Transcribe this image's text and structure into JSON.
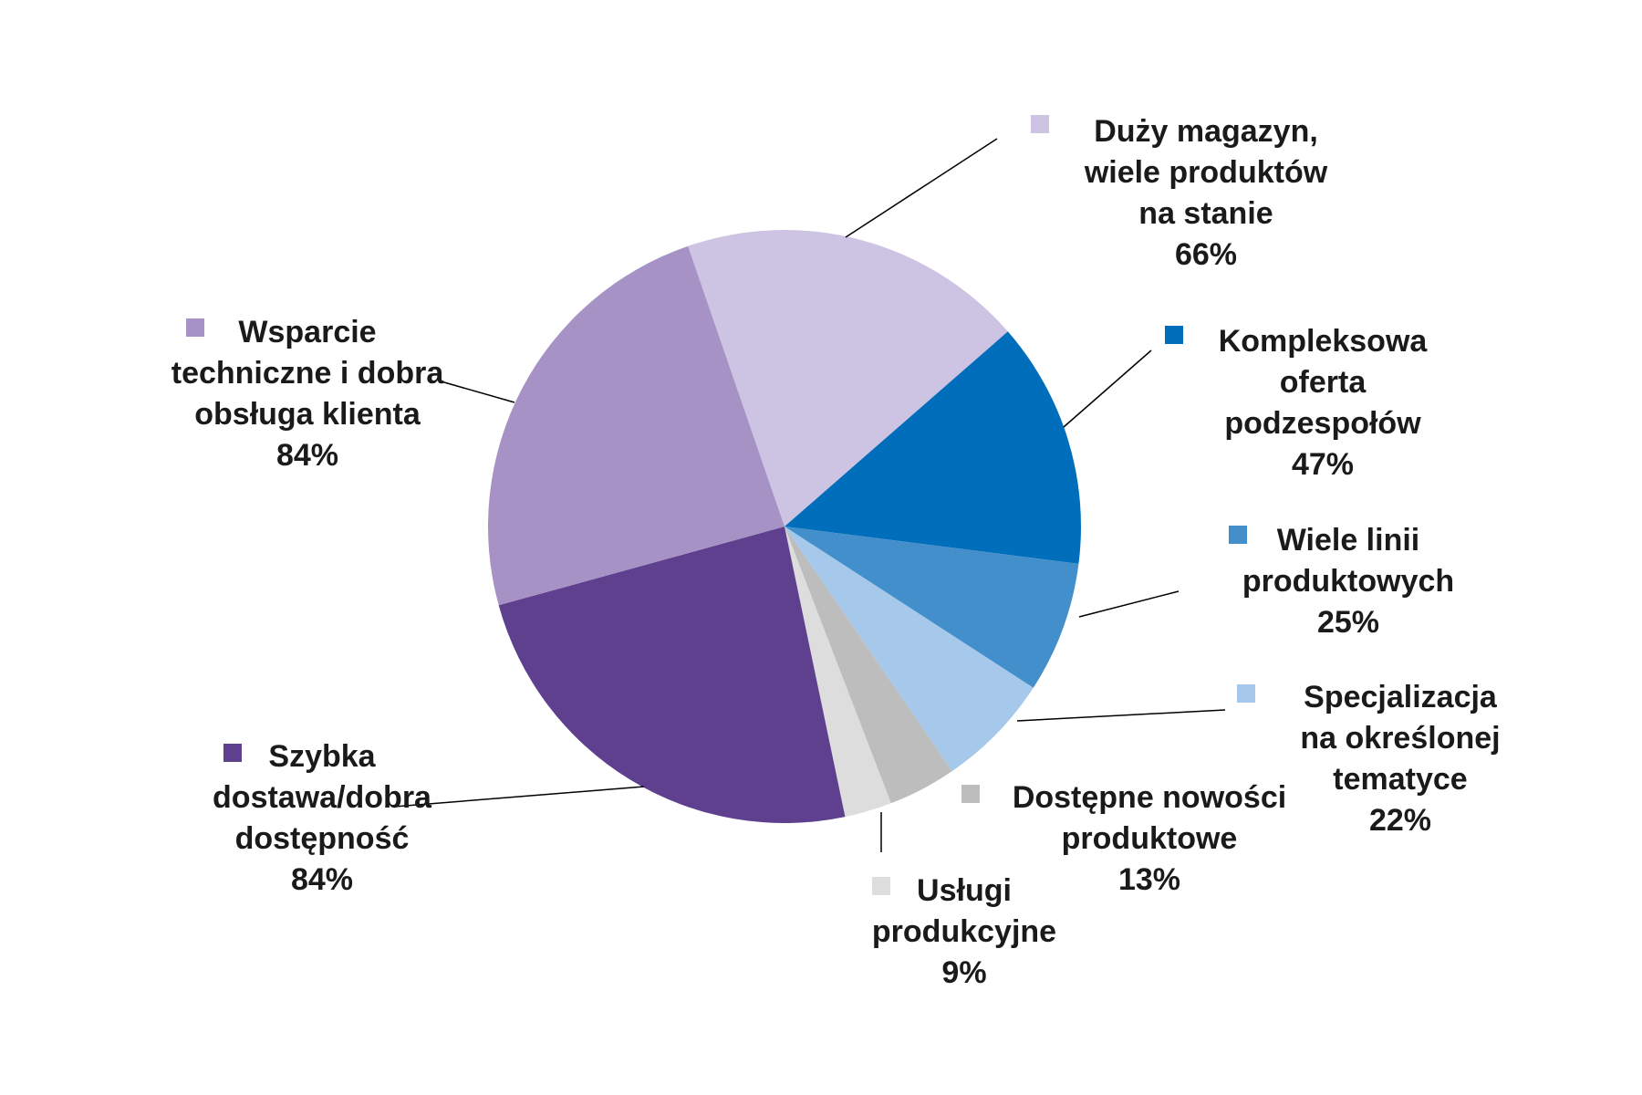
{
  "chart_data": {
    "type": "pie",
    "title": "",
    "slices": [
      {
        "lines": [
          "Duży magazyn,",
          "wiele produktów",
          "na stanie"
        ],
        "value": 66,
        "value_label": "66%",
        "color": "#CDC3E3"
      },
      {
        "lines": [
          "Kompleksowa",
          "oferta",
          "podzespołów"
        ],
        "value": 47,
        "value_label": "47%",
        "color": "#006EBB"
      },
      {
        "lines": [
          "Wiele linii",
          "produktowych"
        ],
        "value": 25,
        "value_label": "25%",
        "color": "#428FCB"
      },
      {
        "lines": [
          "Specjalizacja",
          "na określonej",
          "tematyce"
        ],
        "value": 22,
        "value_label": "22%",
        "color": "#A6C8EA"
      },
      {
        "lines": [
          "Dostępne nowości",
          "produktowe"
        ],
        "value": 13,
        "value_label": "13%",
        "color": "#BDBDBD"
      },
      {
        "lines": [
          "Usługi",
          "produkcyjne"
        ],
        "value": 9,
        "value_label": "9%",
        "color": "#DDDDDD"
      },
      {
        "lines": [
          "Szybka",
          "dostawa/dobra",
          "dostępność"
        ],
        "value": 84,
        "value_label": "84%",
        "color": "#5E408F"
      },
      {
        "lines": [
          "Wsparcie",
          "techniczne i dobra",
          "obsługa klienta"
        ],
        "value": 84,
        "value_label": "84%",
        "color": "#A692C4"
      }
    ]
  }
}
